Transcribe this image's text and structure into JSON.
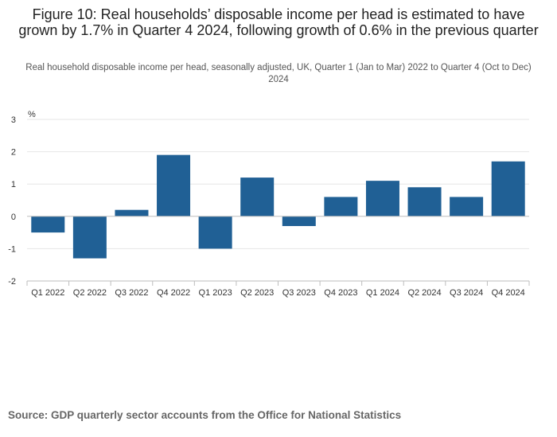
{
  "chart_data": {
    "type": "bar",
    "title": "Figure 10: Real households’ disposable income per head is estimated to have grown by 1.7% in Quarter 4 2024, following growth of 0.6% in the previous quarter",
    "subtitle": "Real household disposable income per head, seasonally adjusted, UK, Quarter 1 (Jan to Mar) 2022 to Quarter 4 (Oct to Dec) 2024",
    "ylabel": "%",
    "xlabel": "",
    "ylim": [
      -2,
      3
    ],
    "yticks": [
      "3",
      "2",
      "1",
      "0",
      "-1",
      "-2"
    ],
    "ytick_values": [
      3,
      2,
      1,
      0,
      -1,
      -2
    ],
    "grid": true,
    "categories": [
      "Q1 2022",
      "Q2 2022",
      "Q3 2022",
      "Q4 2022",
      "Q1 2023",
      "Q2 2023",
      "Q3 2023",
      "Q4 2023",
      "Q1 2024",
      "Q2 2024",
      "Q3 2024",
      "Q4 2024"
    ],
    "values": [
      -0.5,
      -1.3,
      0.2,
      1.9,
      -1.0,
      1.2,
      -0.3,
      0.6,
      1.1,
      0.9,
      0.6,
      1.7
    ],
    "bar_color": "#206095"
  },
  "source": "Source: GDP quarterly sector accounts from the Office for National Statistics"
}
